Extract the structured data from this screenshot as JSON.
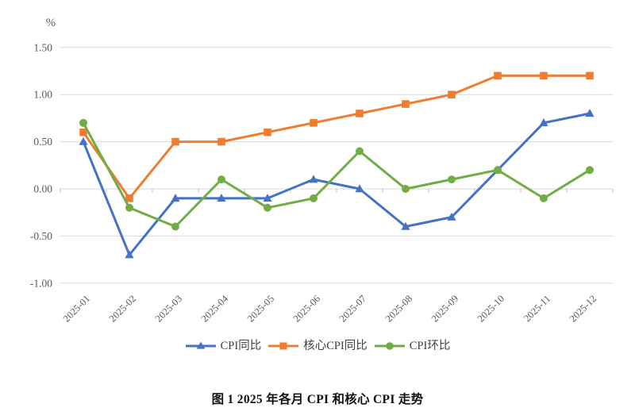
{
  "chart_data": {
    "type": "line",
    "title": "图 1  2025 年各月 CPI 和核心 CPI 走势",
    "ylabel": "%",
    "xlabel": "",
    "categories": [
      "2025-01",
      "2025-02",
      "2025-03",
      "2025-04",
      "2025-05",
      "2025-06",
      "2025-07",
      "2025-08",
      "2025-09",
      "2025-10",
      "2025-11",
      "2025-12"
    ],
    "series": [
      {
        "name": "CPI同比",
        "marker": "triangle",
        "color": "#4472C4",
        "values": [
          0.5,
          -0.7,
          -0.1,
          -0.1,
          -0.1,
          0.1,
          0.0,
          -0.4,
          -0.3,
          0.2,
          0.7,
          0.8
        ]
      },
      {
        "name": "核心CPI同比",
        "marker": "square",
        "color": "#ED7D31",
        "values": [
          0.6,
          -0.1,
          0.5,
          0.5,
          0.6,
          0.7,
          0.8,
          0.9,
          1.0,
          1.2,
          1.2,
          1.2
        ]
      },
      {
        "name": "CPI环比",
        "marker": "circle",
        "color": "#70AD47",
        "values": [
          0.7,
          -0.2,
          -0.4,
          0.1,
          -0.2,
          -0.1,
          0.4,
          0.0,
          0.1,
          0.2,
          -0.1,
          0.2
        ]
      }
    ],
    "y_ticks": [
      1.5,
      1.0,
      0.5,
      0.0,
      -0.5,
      -1.0
    ],
    "ylim": [
      -1.0,
      1.5
    ],
    "grid": true,
    "legend_position": "bottom",
    "colors": {
      "gridline": "#D9D9D9",
      "tick_mark": "#BFBFBF",
      "axis_text": "#595959",
      "legend_text": "#404040",
      "caption_text": "#111111",
      "background": "#FFFFFF"
    }
  }
}
